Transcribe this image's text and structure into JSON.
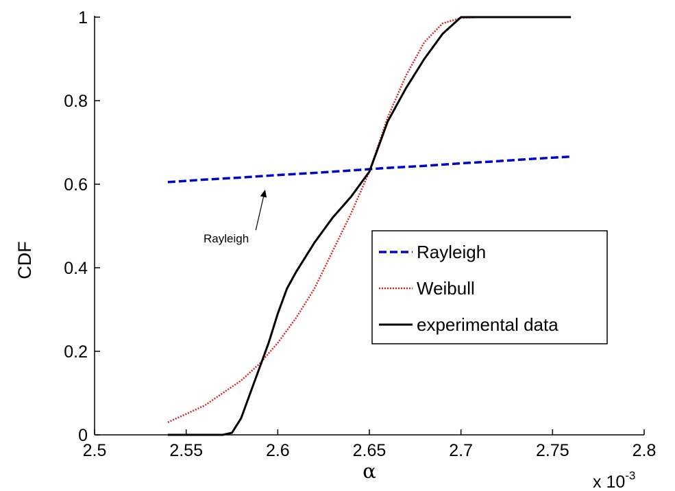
{
  "chart_data": {
    "type": "line",
    "title": "",
    "xlabel": "α",
    "ylabel": "CDF",
    "x_multiplier_label": "x 10",
    "x_multiplier_exponent": "-3",
    "xlim": [
      2.5,
      2.8
    ],
    "ylim": [
      0,
      1
    ],
    "x_ticks": [
      "2.5",
      "2.55",
      "2.6",
      "2.65",
      "2.7",
      "2.75",
      "2.8"
    ],
    "y_ticks": [
      "0",
      "0.2",
      "0.4",
      "0.6",
      "0.8",
      "1"
    ],
    "grid": false,
    "legend_position": "center-right",
    "series": [
      {
        "name": "Rayleigh",
        "color": "#0000cc",
        "style": "dashed",
        "x": [
          2.54,
          2.56,
          2.58,
          2.6,
          2.62,
          2.64,
          2.66,
          2.68,
          2.7,
          2.72,
          2.74,
          2.76
        ],
        "y": [
          0.605,
          0.611,
          0.616,
          0.622,
          0.627,
          0.633,
          0.639,
          0.644,
          0.65,
          0.655,
          0.661,
          0.666
        ]
      },
      {
        "name": "Weibull",
        "color": "#dd2222",
        "style": "dotted",
        "x": [
          2.54,
          2.55,
          2.56,
          2.57,
          2.58,
          2.59,
          2.6,
          2.61,
          2.62,
          2.63,
          2.64,
          2.65,
          2.66,
          2.67,
          2.68,
          2.69,
          2.7,
          2.71,
          2.72,
          2.74,
          2.76
        ],
        "y": [
          0.03,
          0.05,
          0.07,
          0.1,
          0.13,
          0.17,
          0.22,
          0.28,
          0.35,
          0.44,
          0.53,
          0.63,
          0.76,
          0.86,
          0.94,
          0.985,
          0.998,
          1.0,
          1.0,
          1.0,
          1.0
        ]
      },
      {
        "name": "experimental data",
        "color": "#000000",
        "style": "solid",
        "x": [
          2.54,
          2.56,
          2.57,
          2.575,
          2.58,
          2.585,
          2.59,
          2.595,
          2.6,
          2.605,
          2.61,
          2.62,
          2.63,
          2.64,
          2.645,
          2.65,
          2.655,
          2.66,
          2.67,
          2.68,
          2.69,
          2.7,
          2.72,
          2.74,
          2.76
        ],
        "y": [
          0.0,
          0.0,
          0.0,
          0.005,
          0.04,
          0.1,
          0.16,
          0.22,
          0.29,
          0.35,
          0.39,
          0.46,
          0.52,
          0.57,
          0.6,
          0.63,
          0.69,
          0.75,
          0.83,
          0.9,
          0.96,
          1.0,
          1.0,
          1.0,
          1.0
        ]
      }
    ],
    "annotations": [
      {
        "text": "Rayleigh",
        "arrow_from": [
          2.588,
          0.49
        ],
        "arrow_to": [
          2.593,
          0.585
        ]
      }
    ]
  }
}
